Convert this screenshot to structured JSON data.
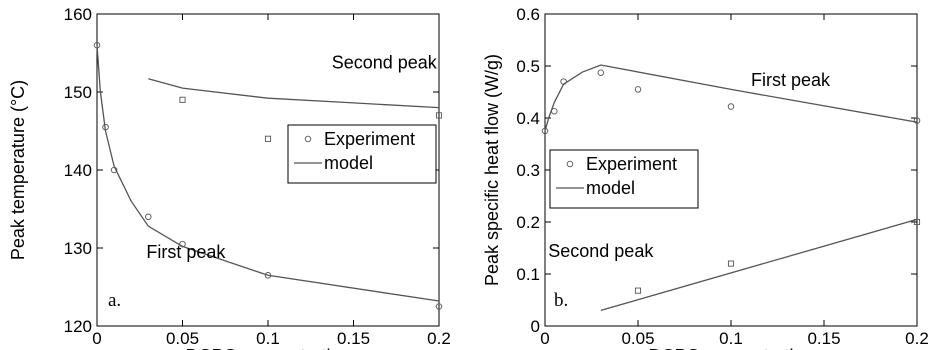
{
  "chart_data": [
    {
      "type": "line",
      "panel_tag": "a.",
      "xlabel": "DCPO concentration",
      "ylabel": "Peak temperature (°C)",
      "xlim": [
        0,
        0.2
      ],
      "ylim": [
        120,
        160
      ],
      "xticks": [
        0,
        0.05,
        0.1,
        0.15,
        0.2
      ],
      "xtick_labels": [
        "0",
        "0.05",
        "0.1",
        "0.15",
        "0.2"
      ],
      "yticks": [
        120,
        130,
        140,
        150,
        160
      ],
      "ytick_labels": [
        "120",
        "130",
        "140",
        "150",
        "160"
      ],
      "grid": false,
      "legend": {
        "position": "center-right",
        "entries": [
          {
            "label": "Experiment",
            "marker": "circle"
          },
          {
            "label": "model",
            "marker": "line"
          }
        ]
      },
      "annotations": [
        {
          "text": "Second peak",
          "x": 0.168,
          "y": 153
        },
        {
          "text": "First peak",
          "x": 0.052,
          "y": 128.7
        }
      ],
      "series": [
        {
          "kind": "experiment",
          "marker": "circle",
          "x": [
            0,
            0.005,
            0.01,
            0.03,
            0.05,
            0.1,
            0.2
          ],
          "y": [
            156,
            145.5,
            140,
            134,
            130.5,
            126.5,
            122.5
          ]
        },
        {
          "kind": "experiment",
          "marker": "square",
          "x": [
            0.05,
            0.1,
            0.2
          ],
          "y": [
            149,
            144,
            147
          ]
        },
        {
          "kind": "model",
          "x": [
            0,
            0.002,
            0.005,
            0.01,
            0.02,
            0.03,
            0.05,
            0.1,
            0.2
          ],
          "y": [
            156,
            150,
            145,
            140.5,
            136,
            132.8,
            130.2,
            126.5,
            123.2
          ]
        },
        {
          "kind": "model",
          "x": [
            0.03,
            0.05,
            0.1,
            0.15,
            0.2
          ],
          "y": [
            151.7,
            150.5,
            149.2,
            148.6,
            148
          ]
        }
      ]
    },
    {
      "type": "line",
      "panel_tag": "b.",
      "xlabel": "DCPO concentration",
      "ylabel": "Peak specific heat flow (W/g)",
      "xlim": [
        0,
        0.2
      ],
      "ylim": [
        0,
        0.6
      ],
      "xticks": [
        0,
        0.05,
        0.1,
        0.15,
        0.2
      ],
      "xtick_labels": [
        "0",
        "0.05",
        "0.1",
        "0.15",
        "0.2"
      ],
      "yticks": [
        0,
        0.1,
        0.2,
        0.3,
        0.4,
        0.5,
        0.6
      ],
      "ytick_labels": [
        "0",
        "0.1",
        "0.2",
        "0.3",
        "0.4",
        "0.5",
        "0.6"
      ],
      "grid": false,
      "legend": {
        "position": "center-left",
        "entries": [
          {
            "label": "Experiment",
            "marker": "circle"
          },
          {
            "label": "model",
            "marker": "line"
          }
        ]
      },
      "annotations": [
        {
          "text": "First peak",
          "x": 0.132,
          "y": 0.462
        },
        {
          "text": "Second peak",
          "x": 0.03,
          "y": 0.133
        }
      ],
      "series": [
        {
          "kind": "experiment",
          "marker": "circle",
          "x": [
            0,
            0.005,
            0.01,
            0.03,
            0.05,
            0.1,
            0.2
          ],
          "y": [
            0.375,
            0.413,
            0.47,
            0.487,
            0.455,
            0.422,
            0.395
          ]
        },
        {
          "kind": "experiment",
          "marker": "square",
          "x": [
            0.05,
            0.1,
            0.2
          ],
          "y": [
            0.068,
            0.12,
            0.2
          ]
        },
        {
          "kind": "model",
          "x": [
            0,
            0.002,
            0.005,
            0.01,
            0.02,
            0.03,
            0.1,
            0.2
          ],
          "y": [
            0.375,
            0.4,
            0.43,
            0.465,
            0.488,
            0.502,
            0.455,
            0.392
          ]
        },
        {
          "kind": "model",
          "x": [
            0.03,
            0.2
          ],
          "y": [
            0.03,
            0.205
          ]
        }
      ]
    }
  ]
}
